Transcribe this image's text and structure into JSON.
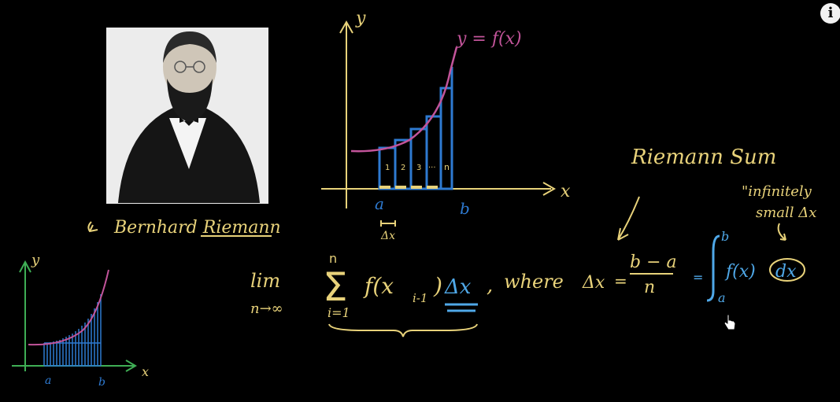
{
  "info_button": {
    "label": "i"
  },
  "portrait": {
    "caption": "Bernhard Riemann"
  },
  "graph_top": {
    "y_label": "y",
    "x_label": "x",
    "curve_label": "y = f(x)",
    "a_label": "a",
    "b_label": "b",
    "dx_label": "Δx",
    "rect_labels": [
      "1",
      "2",
      "3",
      "···",
      "n"
    ]
  },
  "graph_small": {
    "y_label": "y",
    "x_label": "x",
    "a_label": "a",
    "b_label": "b"
  },
  "heading": "Riemann Sum",
  "note": {
    "line1": "\"infinitely",
    "line2": "small Δx"
  },
  "formula": {
    "lim": "lim",
    "lim_sub": "n→∞",
    "sigma": "Σ",
    "sigma_top": "n",
    "sigma_bottom": "i=1",
    "term": "f(x",
    "term_sub": "i-1",
    "term_close": ")",
    "dx": "Δx",
    "comma": ",",
    "where": "where",
    "delta_x": "Δx",
    "equals": "=",
    "frac_num": "b − a",
    "frac_den": "n",
    "equals2": "=",
    "integral_upper": "b",
    "integral_lower": "a",
    "integrand": "f(x)",
    "differential": "dx"
  },
  "colors": {
    "yellow": "#e8d27a",
    "blue": "#2e7ad1",
    "blue_light": "#4fa8e8",
    "magenta": "#c2549a",
    "green": "#3fae55",
    "white": "#ffffff"
  }
}
